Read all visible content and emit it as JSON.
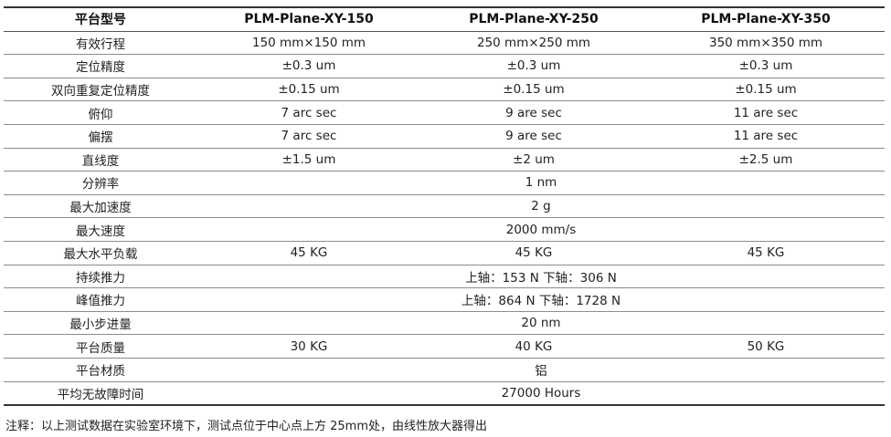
{
  "header": {
    "param": "平台型号",
    "model1": "PLM-Plane-XY-150",
    "model2": "PLM-Plane-XY-250",
    "model3": "PLM-Plane-XY-350"
  },
  "rows": [
    {
      "label": "有效行程",
      "v1": "150 mm×150 mm",
      "v2": "250 mm×250 mm",
      "v3": "350 mm×350 mm"
    },
    {
      "label": "定位精度",
      "v1": "±0.3 um",
      "v2": "±0.3 um",
      "v3": "±0.3 um"
    },
    {
      "label": "双向重复定位精度",
      "v1": "±0.15 um",
      "v2": "±0.15 um",
      "v3": "±0.15 um"
    },
    {
      "label": "俯仰",
      "v1": "7 arc sec",
      "v2": "9 are sec",
      "v3": "11 are sec"
    },
    {
      "label": "偏摆",
      "v1": "7 arc sec",
      "v2": "9 are sec",
      "v3": "11 are sec"
    },
    {
      "label": "直线度",
      "v1": "±1.5 um",
      "v2": "±2 um",
      "v3": "±2.5 um"
    },
    {
      "label": "分辨率",
      "all": "1 nm"
    },
    {
      "label": "最大加速度",
      "all": "2 g"
    },
    {
      "label": "最大速度",
      "all": "2000 mm/s"
    },
    {
      "label": "最大水平负载",
      "v1": "45 KG",
      "v2": "45 KG",
      "v3": "45 KG"
    },
    {
      "label": "持续推力",
      "all": "上轴：153 N 下轴：306 N"
    },
    {
      "label": "峰值推力",
      "all": "上轴：864 N 下轴：1728 N"
    },
    {
      "label": "最小步进量",
      "all": "20 nm"
    },
    {
      "label": "平台质量",
      "v1": "30 KG",
      "v2": "40 KG",
      "v3": "50 KG"
    },
    {
      "label": "平台材质",
      "all": "铝"
    },
    {
      "label": "平均无故障时间",
      "all": "27000 Hours"
    }
  ],
  "note": "注释：以上测试数据在实验室环境下，测试点位于中心点上方 25mm处，由线性放大器得出"
}
